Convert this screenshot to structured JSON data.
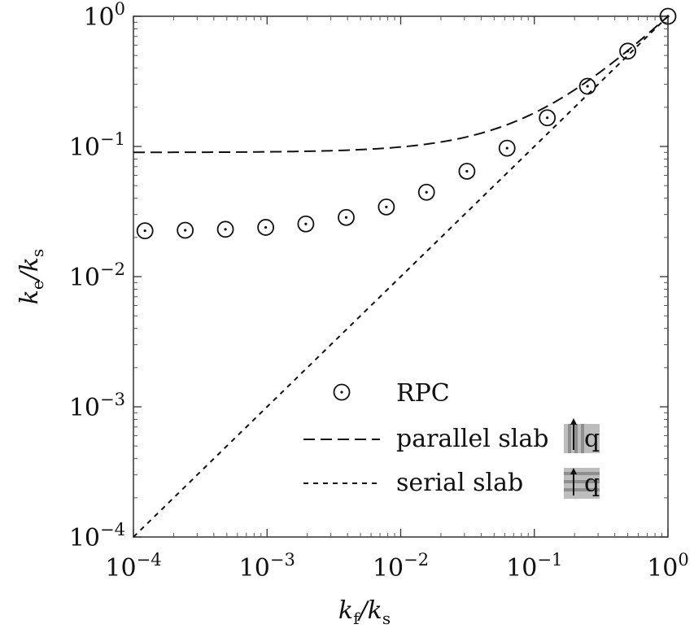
{
  "chart_data": {
    "type": "line",
    "xscale": "log",
    "yscale": "log",
    "xlim": [
      0.0001,
      1
    ],
    "ylim": [
      0.0001,
      1
    ],
    "xticks": [
      {
        "value": 0.0001,
        "base": "10",
        "exp": "−4"
      },
      {
        "value": 0.001,
        "base": "10",
        "exp": "−3"
      },
      {
        "value": 0.01,
        "base": "10",
        "exp": "−2"
      },
      {
        "value": 0.1,
        "base": "10",
        "exp": "−1"
      },
      {
        "value": 1,
        "base": "10",
        "exp": "0"
      }
    ],
    "yticks": [
      {
        "value": 0.0001,
        "base": "10",
        "exp": "−4"
      },
      {
        "value": 0.001,
        "base": "10",
        "exp": "−3"
      },
      {
        "value": 0.01,
        "base": "10",
        "exp": "−2"
      },
      {
        "value": 0.1,
        "base": "10",
        "exp": "−1"
      },
      {
        "value": 1,
        "base": "10",
        "exp": "0"
      }
    ],
    "xlabel": {
      "main": "k",
      "sub": "f",
      "sep": "/k",
      "sub2": "s"
    },
    "ylabel": {
      "main": "k",
      "sub": "e",
      "sep": "/k",
      "sub2": "s"
    },
    "grid": false,
    "legend_position": "bottom-right",
    "series": [
      {
        "name": "RPC",
        "style": "markers",
        "marker": "circle-dot",
        "x": [
          0.000122,
          0.000244,
          0.000488,
          0.000977,
          0.00195,
          0.00391,
          0.00781,
          0.0156,
          0.0313,
          0.0625,
          0.125,
          0.25,
          0.5,
          1.0
        ],
        "y": [
          0.0225,
          0.0227,
          0.0231,
          0.0239,
          0.0254,
          0.0285,
          0.0343,
          0.0445,
          0.0645,
          0.097,
          0.166,
          0.29,
          0.54,
          1.0
        ]
      },
      {
        "name": "parallel slab",
        "style": "dashed",
        "formula": "0.09 + 0.91*x",
        "x": [
          0.0001,
          0.001,
          0.01,
          0.03,
          0.1,
          0.3,
          1.0
        ],
        "y": [
          0.0901,
          0.0909,
          0.0991,
          0.117,
          0.181,
          0.363,
          1.0
        ]
      },
      {
        "name": "serial slab",
        "style": "dotted",
        "formula": "x",
        "x": [
          0.0001,
          1.0
        ],
        "y": [
          0.0001,
          1.0
        ]
      }
    ],
    "legend_icons": {
      "parallel": "vertical-stripes-heat-flux-icon",
      "serial": "horizontal-stripes-heat-flux-icon",
      "flux_label": "q"
    }
  }
}
